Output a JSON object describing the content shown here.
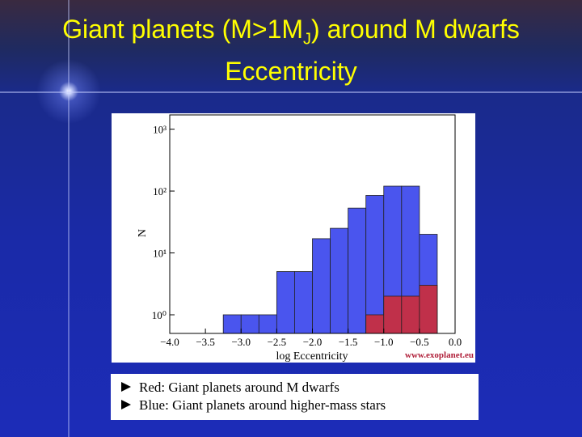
{
  "slide": {
    "title_parts": [
      "Giant planets (M>1M",
      "J",
      ") around M dwarfs"
    ],
    "subtitle": "Eccentricity"
  },
  "chart_data": {
    "type": "histogram",
    "bins": [
      -3.25,
      -3.0,
      -2.75,
      -2.5,
      -2.25,
      -2.0,
      -1.75,
      -1.5,
      -1.25,
      -1.0,
      -0.75,
      -0.5,
      -0.25
    ],
    "series": [
      {
        "name": "Red: Giant planets around M dwarfs",
        "color": "#c0304a",
        "values": [
          0,
          0,
          0,
          0,
          0,
          0,
          0,
          0,
          1,
          2,
          2,
          3
        ]
      },
      {
        "name": "Blue: Giant planets around higher-mass stars",
        "color": "#4a55ee",
        "values": [
          1,
          1,
          1,
          5,
          5,
          17,
          25,
          53,
          85,
          120,
          120,
          20
        ]
      }
    ],
    "x_label": "log Eccentricity",
    "y_label": "N",
    "annotation": "www.exoplanet.eu",
    "xlim": [
      -4.0,
      0.0
    ],
    "xticks": [
      {
        "value": -4.0,
        "label": "−4.0"
      },
      {
        "value": -3.5,
        "label": "−3.5"
      },
      {
        "value": -3.0,
        "label": "−3.0"
      },
      {
        "value": -2.5,
        "label": "−2.5"
      },
      {
        "value": -2.0,
        "label": "−2.0"
      },
      {
        "value": -1.5,
        "label": "−1.5"
      },
      {
        "value": -1.0,
        "label": "−1.0"
      },
      {
        "value": -0.5,
        "label": "−0.5"
      },
      {
        "value": 0.0,
        "label": "0.0"
      }
    ],
    "ylim": [
      0.5,
      1700
    ],
    "y_log": true,
    "yticks": [
      {
        "value": 1,
        "label": "10⁰"
      },
      {
        "value": 10,
        "label": "10¹"
      },
      {
        "value": 100,
        "label": "10²"
      },
      {
        "value": 1000,
        "label": "10³"
      }
    ]
  }
}
